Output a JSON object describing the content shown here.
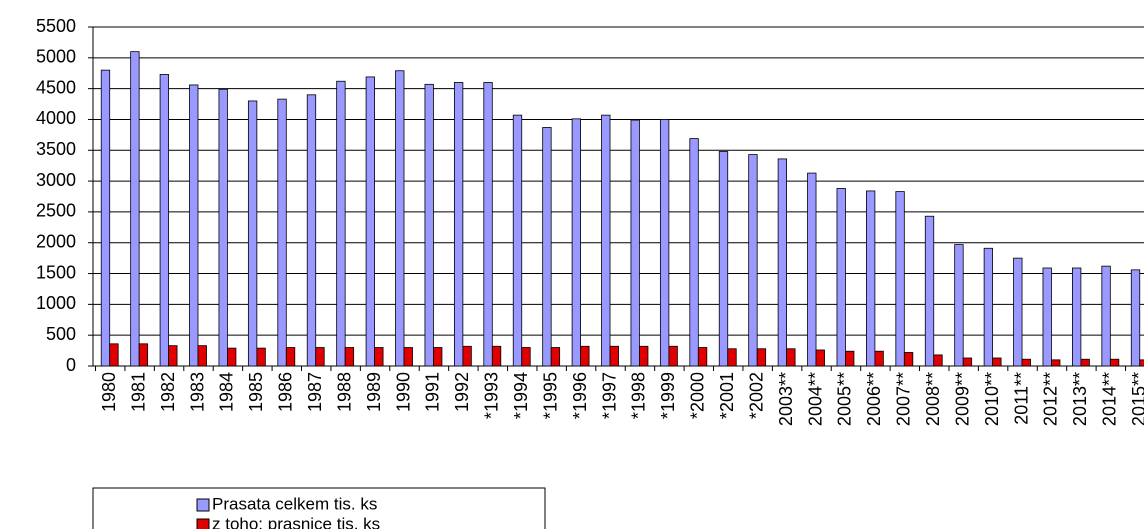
{
  "chart_data": {
    "type": "bar",
    "categories": [
      "1980",
      "1981",
      "1982",
      "1983",
      "1984",
      "1985",
      "1986",
      "1987",
      "1988",
      "1989",
      "1990",
      "1991",
      "1992",
      "*1993",
      "*1994",
      "*1995",
      "*1996",
      "*1997",
      "*1998",
      "*1999",
      "*2000",
      "*2001",
      "*2002",
      "2003**",
      "2004**",
      "2005**",
      "2006**",
      "2007**",
      "2008**",
      "2009**",
      "2010**",
      "2011**",
      "2012**",
      "2013**",
      "2014**",
      "2015**"
    ],
    "series": [
      {
        "name": "Prasata celkem tis. ks",
        "color": "#9999ff",
        "values": [
          4800,
          5100,
          4730,
          4560,
          4490,
          4300,
          4330,
          4400,
          4620,
          4690,
          4790,
          4570,
          4600,
          4600,
          4070,
          3870,
          4010,
          4070,
          3990,
          4000,
          3690,
          3480,
          3430,
          3360,
          3130,
          2880,
          2840,
          2830,
          2430,
          1970,
          1910,
          1750,
          1590,
          1590,
          1620,
          1560
        ]
      },
      {
        "name": "z toho: prasnice tis. ks",
        "color": "#e00000",
        "values": [
          360,
          360,
          330,
          330,
          290,
          290,
          300,
          300,
          300,
          300,
          300,
          300,
          320,
          320,
          300,
          300,
          320,
          320,
          320,
          320,
          300,
          280,
          280,
          280,
          260,
          240,
          240,
          220,
          180,
          130,
          130,
          110,
          100,
          110,
          110,
          100
        ]
      }
    ],
    "ylim": [
      0,
      5500
    ],
    "yticks": [
      0,
      500,
      1000,
      1500,
      2000,
      2500,
      3000,
      3500,
      4000,
      4500,
      5000,
      5500
    ],
    "grid": true,
    "legend": "bottom-left"
  }
}
